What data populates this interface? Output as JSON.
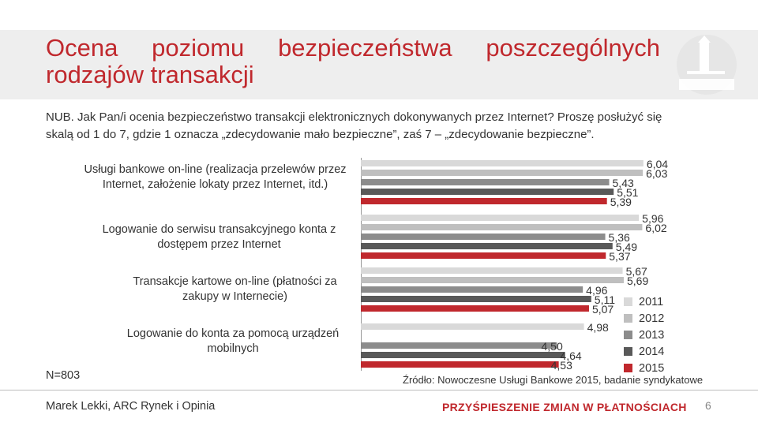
{
  "title": {
    "line1_words": [
      "Ocena",
      "poziomu",
      "bezpieczeństwa",
      "poszczególnych"
    ],
    "line2": "rodzajów transakcji"
  },
  "question": {
    "line1": "NUB. Jak Pan/i ocenia bezpieczeństwo transakcji elektronicznych dokonywanych przez Internet? Proszę posłużyć się",
    "line2": "skalą od 1 do 7, gdzie 1 oznacza „zdecydowanie mało bezpieczne”, zaś 7 – „zdecydowanie bezpieczne”."
  },
  "n_label": "N=803",
  "source": "Źródło: Nowoczesne Usługi Bankowe 2015, badanie syndykatowe",
  "footer": {
    "author": "Marek Lekki, ARC Rynek i Opinia",
    "slogan": "PRZYŚPIESZENIE ZMIAN W PŁATNOŚCIACH",
    "page": "6"
  },
  "colors": {
    "title": "#c0282d",
    "s2011": "#d9d9d9",
    "s2012": "#bfbfbf",
    "s2013": "#8c8c8c",
    "s2014": "#595959",
    "s2015": "#c0282d"
  },
  "chart_data": {
    "type": "bar",
    "orientation": "horizontal",
    "categories": [
      "Usługi bankowe on-line (realizacja przelewów przez Internet, założenie lokaty przez Internet, itd.)",
      "Logowanie do serwisu transakcyjnego konta z dostępem przez Internet",
      "Transakcje kartowe on-line (płatności za zakupy w Internecie)",
      "Logowanie do konta za pomocą urządzeń mobilnych"
    ],
    "series": [
      {
        "name": "2011",
        "values": [
          6.04,
          5.96,
          5.67,
          4.98
        ],
        "labels": [
          "6,04",
          "5,96",
          "5,67",
          "4,98"
        ]
      },
      {
        "name": "2012",
        "values": [
          6.03,
          6.02,
          5.69,
          null
        ],
        "labels": [
          "6,03",
          "6,02",
          "5,69",
          ""
        ]
      },
      {
        "name": "2013",
        "values": [
          5.43,
          5.36,
          4.96,
          4.5
        ],
        "labels": [
          "5,43",
          "5,36",
          "4,96",
          "4,50"
        ]
      },
      {
        "name": "2014",
        "values": [
          5.51,
          5.49,
          5.11,
          4.64
        ],
        "labels": [
          "5,51",
          "5,49",
          "5,11",
          "4,64"
        ]
      },
      {
        "name": "2015",
        "values": [
          5.39,
          5.37,
          5.07,
          4.53
        ],
        "labels": [
          "5,39",
          "5,37",
          "5,07",
          "4,53"
        ]
      }
    ],
    "xlim": [
      1,
      7
    ],
    "legend_position": "right",
    "grid": false
  }
}
